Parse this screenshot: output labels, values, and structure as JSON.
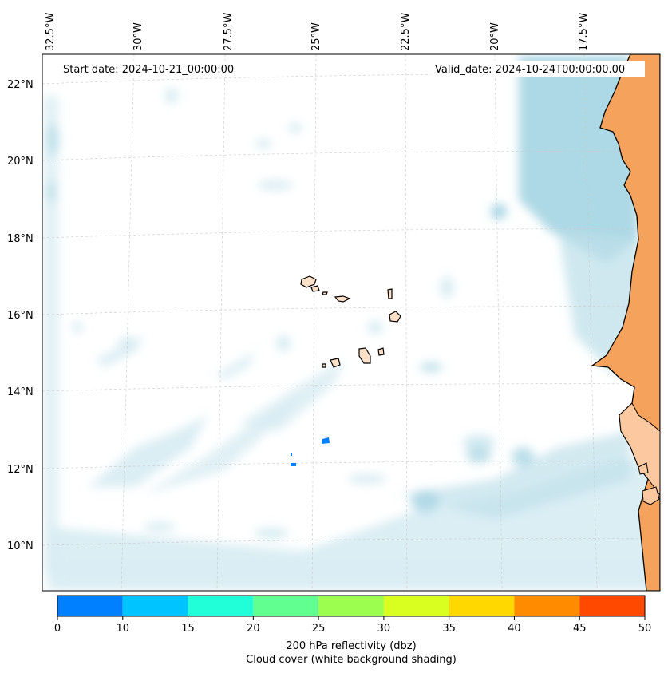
{
  "map": {
    "start_date_label": "Start date: 2024-10-21_00:00:00",
    "valid_date_label": "Valid_date: 2024-10-24T00:00:00.00",
    "lon_labels": [
      "32.5°W",
      "30°W",
      "27.5°W",
      "25°W",
      "22.5°W",
      "20°W",
      "17.5°W"
    ],
    "lat_labels": [
      "22°N",
      "20°N",
      "18°N",
      "16°N",
      "14°N",
      "12°N",
      "10°N"
    ],
    "land_color": "#f5a25c",
    "ocean_cloud_color": "#a9d6e5"
  },
  "colorbar": {
    "bounds": [
      0,
      10,
      15,
      20,
      25,
      30,
      35,
      40,
      45,
      50
    ],
    "colors": [
      "#0080ff",
      "#00c4ff",
      "#20ffd8",
      "#60ff90",
      "#9cff50",
      "#d8ff20",
      "#ffd800",
      "#ff8c00",
      "#ff4800"
    ],
    "label_line1": "200 hPa reflectivity (dbz)",
    "label_line2": "Cloud cover (white background shading)"
  }
}
